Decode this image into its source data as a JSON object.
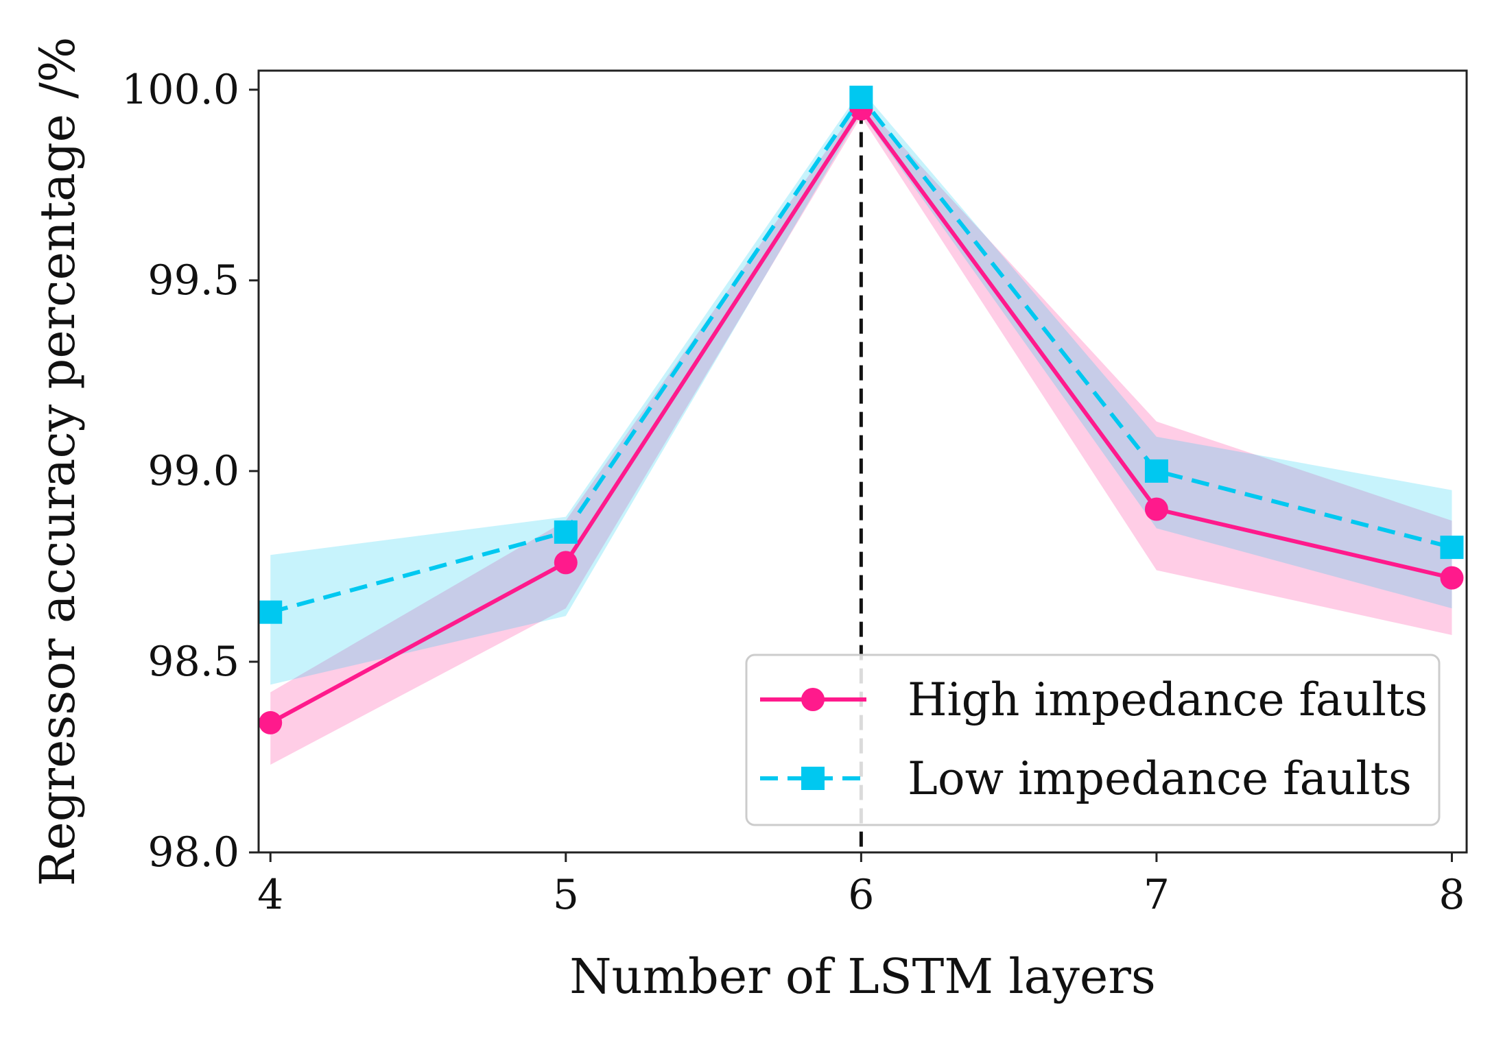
{
  "chart_data": {
    "type": "line",
    "title": "",
    "xlabel": "Number of LSTM layers",
    "ylabel": "Regressor accuracy percentage /%",
    "x": [
      4,
      5,
      6,
      7,
      8
    ],
    "xticks": [
      "4",
      "5",
      "6",
      "7",
      "8"
    ],
    "yticks": [
      "98.0",
      "98.5",
      "99.0",
      "99.5",
      "100.0"
    ],
    "xlim": [
      3.96,
      8.05
    ],
    "ylim": [
      98.0,
      100.05
    ],
    "grid": false,
    "legend_position": "lower-right",
    "vline_x": 6,
    "series": [
      {
        "name": "High impedance faults",
        "color": "#ff1a8c",
        "marker": "circle",
        "linestyle": "solid",
        "values": [
          98.34,
          98.76,
          99.95,
          98.9,
          98.72
        ],
        "band_lower": [
          98.23,
          98.64,
          99.93,
          98.74,
          98.57
        ],
        "band_upper": [
          98.42,
          98.87,
          99.97,
          99.13,
          98.87
        ]
      },
      {
        "name": "Low impedance faults",
        "color": "#00c8f0",
        "marker": "square",
        "linestyle": "dashed",
        "values": [
          98.63,
          98.84,
          99.98,
          99.0,
          98.8
        ],
        "band_lower": [
          98.44,
          98.62,
          99.94,
          98.85,
          98.64
        ],
        "band_upper": [
          98.78,
          98.88,
          100.0,
          99.09,
          98.95
        ]
      }
    ]
  }
}
